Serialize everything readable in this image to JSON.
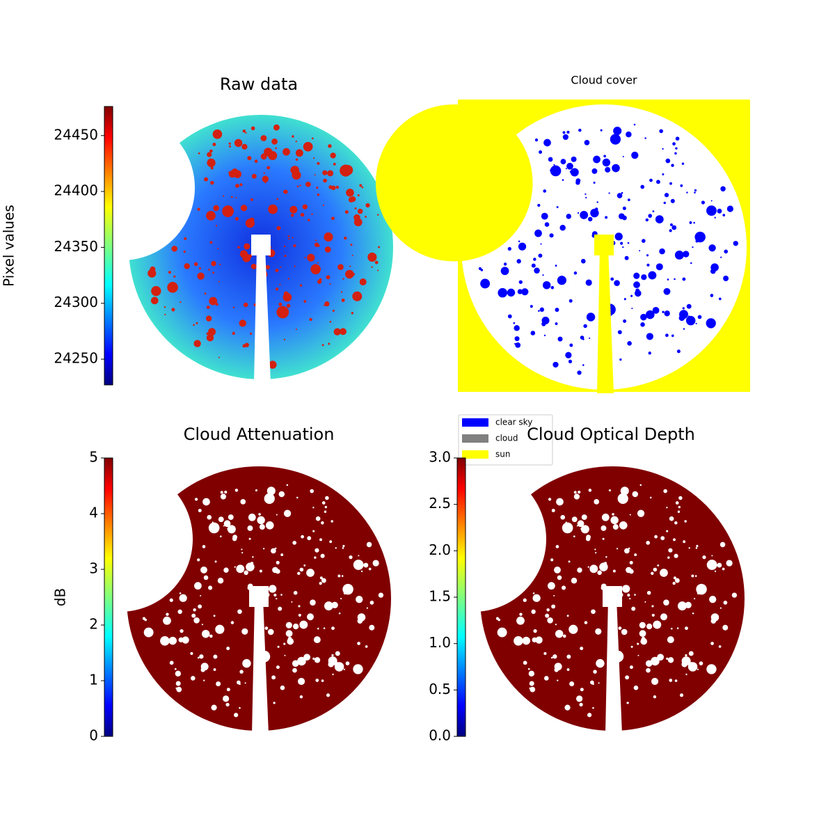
{
  "chart_data": [
    {
      "type": "image",
      "title": "Raw data",
      "colormap": "jet",
      "colorbar": {
        "label": "Pixel values",
        "ylim": [
          24227,
          24476
        ],
        "yticks": [
          24250,
          24300,
          24350,
          24400,
          24450
        ]
      }
    },
    {
      "type": "image",
      "title": "Cloud cover",
      "legend": [
        {
          "name": "clear sky",
          "color": "#0000ff"
        },
        {
          "name": "cloud",
          "color": "#808080"
        },
        {
          "name": "sun",
          "color": "#ffff00"
        }
      ]
    },
    {
      "type": "image",
      "title": "Cloud Attenuation",
      "colormap": "jet",
      "colorbar": {
        "label": "dB",
        "ylim": [
          0,
          5
        ],
        "yticks": [
          0,
          1,
          2,
          3,
          4,
          5
        ]
      }
    },
    {
      "type": "image",
      "title": "Cloud Optical Depth",
      "colormap": "jet",
      "colorbar": {
        "ylim": [
          0,
          3
        ],
        "yticks": [
          0.0,
          0.5,
          1.0,
          1.5,
          2.0,
          2.5,
          3.0
        ]
      }
    }
  ]
}
